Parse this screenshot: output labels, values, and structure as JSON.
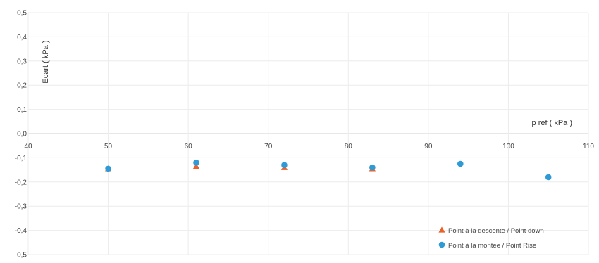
{
  "chart_data": {
    "type": "scatter",
    "xlabel": "p ref ( kPa )",
    "ylabel": "Ecart ( kPa )",
    "xlim": [
      40,
      110
    ],
    "ylim": [
      -0.5,
      0.5
    ],
    "xticks": [
      "40",
      "50",
      "60",
      "70",
      "80",
      "90",
      "100",
      "110"
    ],
    "yticks": [
      "0,5",
      "0,4",
      "0,3",
      "0,2",
      "0,1",
      "0,0",
      "-0,1",
      "-0,2",
      "-0,3",
      "-0,4",
      "-0,5"
    ],
    "grid": true,
    "legend_position": "bottom-right",
    "series": [
      {
        "name": "Point à la descente / Point down",
        "marker": "triangle",
        "color": "#e8622a",
        "x": [
          50,
          61,
          72,
          83
        ],
        "y": [
          -0.145,
          -0.135,
          -0.14,
          -0.145
        ]
      },
      {
        "name": "Point à la montee / Point Rise",
        "marker": "circle",
        "color": "#2e9ad6",
        "x": [
          50,
          61,
          72,
          83,
          94,
          105
        ],
        "y": [
          -0.145,
          -0.12,
          -0.13,
          -0.14,
          -0.125,
          -0.18
        ]
      }
    ]
  }
}
